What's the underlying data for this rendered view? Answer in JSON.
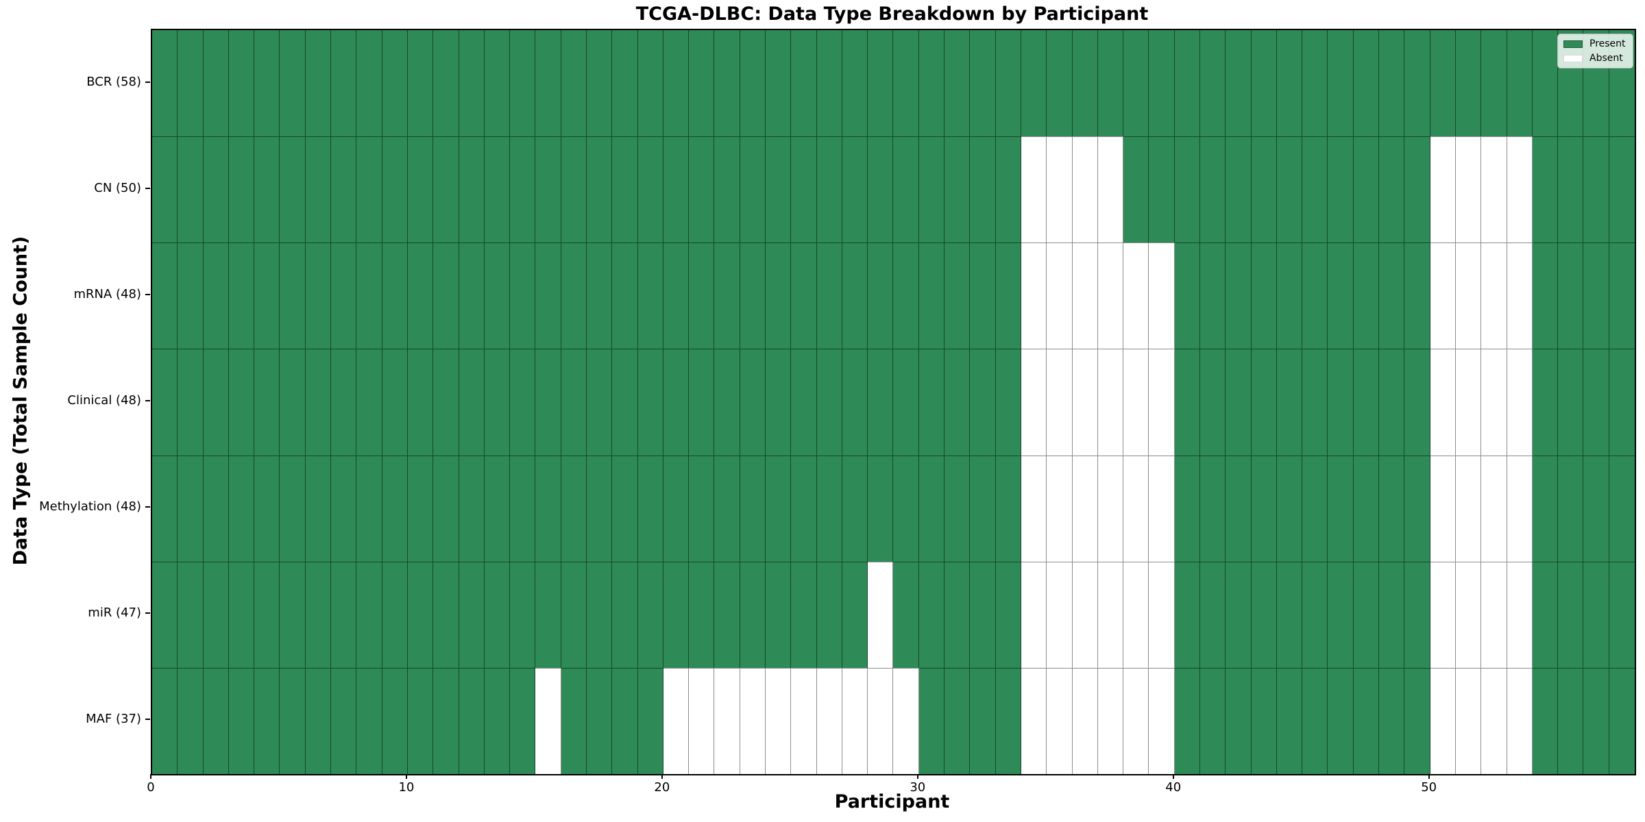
{
  "title": "TCGA-DLBC: Data Type Breakdown by Participant",
  "x_axis": {
    "label": "Participant",
    "ticks": [
      0,
      10,
      20,
      30,
      40,
      50
    ]
  },
  "y_axis": {
    "label": "Data Type (Total Sample Count)"
  },
  "legend": [
    {
      "label": "Present",
      "color": "#2e8b57",
      "border": "#1d5c39"
    },
    {
      "label": "Absent",
      "color": "#ffffff",
      "border": "#d8d8d8"
    }
  ],
  "chart_data": {
    "type": "heatmap",
    "title": "TCGA-DLBC: Data Type Breakdown by Participant",
    "xlabel": "Participant",
    "ylabel": "Data Type (Total Sample Count)",
    "x_range": [
      0,
      58
    ],
    "n_participants": 58,
    "x_ticks": [
      0,
      10,
      20,
      30,
      40,
      50
    ],
    "colors": {
      "present": "#2e8b57",
      "absent": "#ffffff"
    },
    "grid": true,
    "legend_position": "upper right",
    "rows": [
      {
        "label": "BCR (58)",
        "data_type": "BCR",
        "total_samples": 58,
        "absent_participants": []
      },
      {
        "label": "CN (50)",
        "data_type": "CN",
        "total_samples": 50,
        "absent_participants": [
          34,
          35,
          36,
          37,
          50,
          51,
          52,
          53
        ]
      },
      {
        "label": "mRNA (48)",
        "data_type": "mRNA",
        "total_samples": 48,
        "absent_participants": [
          34,
          35,
          36,
          37,
          38,
          39,
          50,
          51,
          52,
          53
        ]
      },
      {
        "label": "Clinical (48)",
        "data_type": "Clinical",
        "total_samples": 48,
        "absent_participants": [
          34,
          35,
          36,
          37,
          38,
          39,
          50,
          51,
          52,
          53
        ]
      },
      {
        "label": "Methylation (48)",
        "data_type": "Methylation",
        "total_samples": 48,
        "absent_participants": [
          34,
          35,
          36,
          37,
          38,
          39,
          50,
          51,
          52,
          53
        ]
      },
      {
        "label": "miR (47)",
        "data_type": "miR",
        "total_samples": 47,
        "absent_participants": [
          28,
          34,
          35,
          36,
          37,
          38,
          39,
          50,
          51,
          52,
          53
        ]
      },
      {
        "label": "MAF (37)",
        "data_type": "MAF",
        "total_samples": 37,
        "absent_participants": [
          15,
          20,
          21,
          22,
          23,
          24,
          25,
          26,
          27,
          28,
          29,
          34,
          35,
          36,
          37,
          38,
          39,
          50,
          51,
          52,
          53
        ]
      }
    ]
  }
}
